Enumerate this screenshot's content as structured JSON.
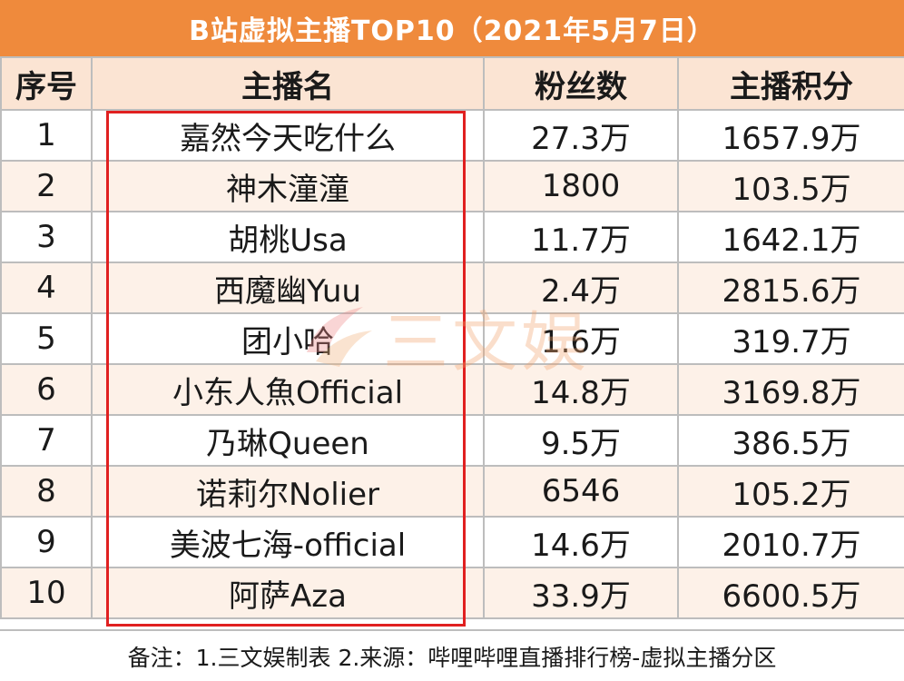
{
  "title": "B站虚拟主播TOP10（2021年5月7日）",
  "headers": [
    "序号",
    "主播名",
    "粉丝数",
    "主播积分"
  ],
  "rows": [
    {
      "rank": "1",
      "name": "嘉然今天吃什么",
      "fans": "27.3万",
      "score": "1657.9万"
    },
    {
      "rank": "2",
      "name": "神木潼潼",
      "fans": "1800",
      "score": "103.5万"
    },
    {
      "rank": "3",
      "name": "胡桃Usa",
      "fans": "11.7万",
      "score": "1642.1万"
    },
    {
      "rank": "4",
      "name": "西魔幽Yuu",
      "fans": "2.4万",
      "score": "2815.6万"
    },
    {
      "rank": "5",
      "name": "团小哈",
      "fans": "1.6万",
      "score": "319.7万"
    },
    {
      "rank": "6",
      "name": "小东人魚Official",
      "fans": "14.8万",
      "score": "3169.8万"
    },
    {
      "rank": "7",
      "name": "乃琳Queen",
      "fans": "9.5万",
      "score": "386.5万"
    },
    {
      "rank": "8",
      "name": "诺莉尔Nolier",
      "fans": "6546",
      "score": "105.2万"
    },
    {
      "rank": "9",
      "name": "美波七海-official",
      "fans": "14.6万",
      "score": "2010.7万"
    },
    {
      "rank": "10",
      "name": "阿萨Aza",
      "fans": "33.9万",
      "score": "6600.5万"
    }
  ],
  "footer": "备注：1.三文娱制表 2.来源：哔哩哔哩直播排行榜-虚拟主播分区",
  "watermark": {
    "text": "三文娱",
    "icon": "sanwenyu-logo-icon"
  },
  "colors": {
    "title_bg": "#ef8a3c",
    "header_bg": "#fbe4d3",
    "stripe_bg": "#fdf1e8",
    "highlight": "#e02020"
  }
}
